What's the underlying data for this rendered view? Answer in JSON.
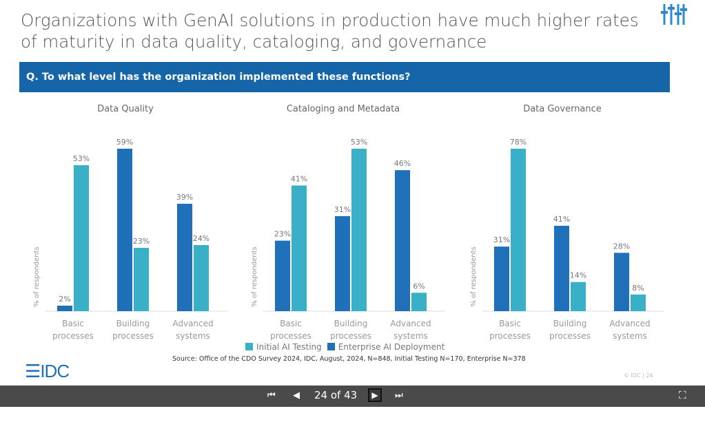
{
  "title": "Organizations with GenAI solutions in production have much higher rates of maturity in data quality, cataloging, and governance",
  "question": "Q. To what level has the organization implemented these functions?",
  "colors": {
    "initial": "#3ab0c8",
    "enterprise": "#1f6fb9",
    "header": "#1565a8"
  },
  "chart_data": [
    {
      "type": "bar",
      "title": "Data Quality",
      "ylabel": "% of respondents",
      "categories": [
        "Basic processes",
        "Building processes",
        "Advanced systems"
      ],
      "series": [
        {
          "name": "Enterprise AI Deployment",
          "values": [
            2,
            59,
            39
          ]
        },
        {
          "name": "Initial AI Testing",
          "values": [
            53,
            23,
            24
          ]
        }
      ]
    },
    {
      "type": "bar",
      "title": "Cataloging and Metadata",
      "ylabel": "% of respondents",
      "categories": [
        "Basic processes",
        "Building processes",
        "Advanced systems"
      ],
      "series": [
        {
          "name": "Enterprise AI Deployment",
          "values": [
            23,
            31,
            46
          ]
        },
        {
          "name": "Initial AI Testing",
          "values": [
            41,
            53,
            6
          ]
        }
      ]
    },
    {
      "type": "bar",
      "title": "Data Governance",
      "ylabel": "% of respondents",
      "categories": [
        "Basic processes",
        "Building processes",
        "Advanced systems"
      ],
      "series": [
        {
          "name": "Enterprise AI Deployment",
          "values": [
            31,
            41,
            28
          ]
        },
        {
          "name": "Initial AI Testing",
          "values": [
            78,
            14,
            8
          ]
        }
      ]
    }
  ],
  "legend": {
    "initial": "Initial AI Testing",
    "enterprise": "Enterprise AI Deployment"
  },
  "source": "Source: Office of the CDO Survey 2024, IDC, August, 2024, N=848, Initial Testing N=170, Enterprise N=378",
  "logo": "IDC",
  "page_footer": "© IDC | 24",
  "nav": {
    "counter": "24 of 43",
    "icons": [
      "first-page-icon",
      "prev-icon",
      "next-icon",
      "last-page-icon",
      "fullscreen-icon"
    ]
  }
}
